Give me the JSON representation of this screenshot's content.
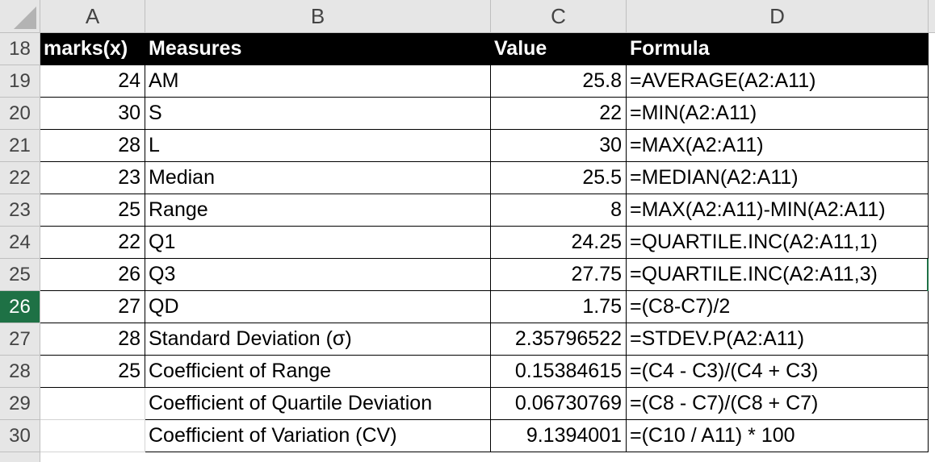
{
  "sheet": {
    "columns": [
      "A",
      "B",
      "C",
      "D"
    ],
    "selected_row": "26",
    "header_row": {
      "row_number": "18",
      "cells": [
        "marks(x)",
        "Measures",
        "Value",
        "Formula"
      ]
    },
    "rows": [
      {
        "row_number": "19",
        "a": "24",
        "b": "AM",
        "c": "25.8",
        "d": "=AVERAGE(A2:A11)"
      },
      {
        "row_number": "20",
        "a": "30",
        "b": "S",
        "c": "22",
        "d": "=MIN(A2:A11)"
      },
      {
        "row_number": "21",
        "a": "28",
        "b": "L",
        "c": "30",
        "d": "=MAX(A2:A11)"
      },
      {
        "row_number": "22",
        "a": "23",
        "b": "Median",
        "c": "25.5",
        "d": "=MEDIAN(A2:A11)"
      },
      {
        "row_number": "23",
        "a": "25",
        "b": "Range",
        "c": "8",
        "d": "=MAX(A2:A11)-MIN(A2:A11)"
      },
      {
        "row_number": "24",
        "a": "22",
        "b": "Q1",
        "c": "24.25",
        "d": "=QUARTILE.INC(A2:A11,1)"
      },
      {
        "row_number": "25",
        "a": "26",
        "b": "Q3",
        "c": "27.75",
        "d": "=QUARTILE.INC(A2:A11,3)"
      },
      {
        "row_number": "26",
        "a": "27",
        "b": "QD",
        "c": "1.75",
        "d": "=(C8-C7)/2"
      },
      {
        "row_number": "27",
        "a": "28",
        "b": "Standard Deviation (σ)",
        "c": "2.35796522",
        "d": "=STDEV.P(A2:A11)"
      },
      {
        "row_number": "28",
        "a": "25",
        "b": "Coefficient of Range",
        "c": "0.15384615",
        "d": "=(C4 - C3)/(C4 + C3)"
      },
      {
        "row_number": "29",
        "a": "",
        "b": "Coefficient of Quartile Deviation",
        "c": "0.06730769",
        "d": "=(C8 - C7)/(C8 + C7)"
      },
      {
        "row_number": "30",
        "a": "",
        "b": "Coefficient of Variation (CV)",
        "c": "9.1394001",
        "d": "=(C10 / A11) * 100"
      }
    ]
  },
  "colors": {
    "header_fill": "#000000",
    "selected_row_header": "#1e7145",
    "grid_header": "#e6e6e6"
  }
}
